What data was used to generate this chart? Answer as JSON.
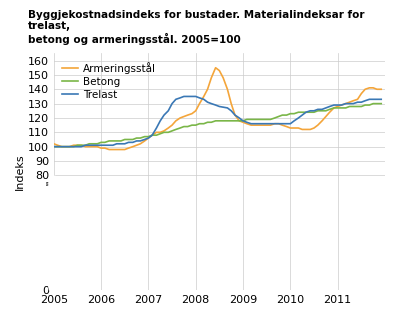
{
  "title": "Byggjekostnadsindeks for bustader. Materialindeksar for trelast,\nbetong og armeringsstål. 2005=100",
  "ylabel": "Indeks",
  "ylim": [
    0,
    165
  ],
  "yticks": [
    0,
    80,
    90,
    100,
    110,
    120,
    130,
    140,
    150,
    160
  ],
  "background_color": "#ffffff",
  "grid_color": "#cccccc",
  "series": {
    "Armeringsstål": {
      "color": "#f4a53a",
      "data": [
        [
          2005.0,
          102
        ],
        [
          2005.08,
          101
        ],
        [
          2005.17,
          100
        ],
        [
          2005.25,
          100
        ],
        [
          2005.33,
          100
        ],
        [
          2005.42,
          101
        ],
        [
          2005.5,
          101
        ],
        [
          2005.58,
          101
        ],
        [
          2005.67,
          100
        ],
        [
          2005.75,
          100
        ],
        [
          2005.83,
          100
        ],
        [
          2005.92,
          100
        ],
        [
          2006.0,
          99
        ],
        [
          2006.08,
          99
        ],
        [
          2006.17,
          98
        ],
        [
          2006.25,
          98
        ],
        [
          2006.33,
          98
        ],
        [
          2006.42,
          98
        ],
        [
          2006.5,
          98
        ],
        [
          2006.58,
          99
        ],
        [
          2006.67,
          100
        ],
        [
          2006.75,
          101
        ],
        [
          2006.83,
          102
        ],
        [
          2006.92,
          104
        ],
        [
          2007.0,
          106
        ],
        [
          2007.08,
          108
        ],
        [
          2007.17,
          110
        ],
        [
          2007.25,
          110
        ],
        [
          2007.33,
          111
        ],
        [
          2007.42,
          113
        ],
        [
          2007.5,
          115
        ],
        [
          2007.58,
          118
        ],
        [
          2007.67,
          120
        ],
        [
          2007.75,
          121
        ],
        [
          2007.83,
          122
        ],
        [
          2007.92,
          123
        ],
        [
          2008.0,
          125
        ],
        [
          2008.08,
          130
        ],
        [
          2008.17,
          135
        ],
        [
          2008.25,
          140
        ],
        [
          2008.33,
          148
        ],
        [
          2008.42,
          155
        ],
        [
          2008.5,
          153
        ],
        [
          2008.58,
          148
        ],
        [
          2008.67,
          140
        ],
        [
          2008.75,
          130
        ],
        [
          2008.83,
          122
        ],
        [
          2008.92,
          118
        ],
        [
          2009.0,
          117
        ],
        [
          2009.08,
          116
        ],
        [
          2009.17,
          115
        ],
        [
          2009.25,
          115
        ],
        [
          2009.33,
          115
        ],
        [
          2009.42,
          115
        ],
        [
          2009.5,
          115
        ],
        [
          2009.58,
          115
        ],
        [
          2009.67,
          116
        ],
        [
          2009.75,
          116
        ],
        [
          2009.83,
          115
        ],
        [
          2009.92,
          114
        ],
        [
          2010.0,
          113
        ],
        [
          2010.08,
          113
        ],
        [
          2010.17,
          113
        ],
        [
          2010.25,
          112
        ],
        [
          2010.33,
          112
        ],
        [
          2010.42,
          112
        ],
        [
          2010.5,
          113
        ],
        [
          2010.58,
          115
        ],
        [
          2010.67,
          118
        ],
        [
          2010.75,
          121
        ],
        [
          2010.83,
          124
        ],
        [
          2010.92,
          127
        ],
        [
          2011.0,
          128
        ],
        [
          2011.08,
          129
        ],
        [
          2011.17,
          130
        ],
        [
          2011.25,
          131
        ],
        [
          2011.33,
          132
        ],
        [
          2011.42,
          133
        ],
        [
          2011.5,
          137
        ],
        [
          2011.58,
          140
        ],
        [
          2011.67,
          141
        ],
        [
          2011.75,
          141
        ],
        [
          2011.83,
          140
        ],
        [
          2011.92,
          140
        ]
      ]
    },
    "Betong": {
      "color": "#7ab648",
      "data": [
        [
          2005.0,
          100
        ],
        [
          2005.08,
          100
        ],
        [
          2005.17,
          100
        ],
        [
          2005.25,
          100
        ],
        [
          2005.33,
          100
        ],
        [
          2005.42,
          100
        ],
        [
          2005.5,
          101
        ],
        [
          2005.58,
          101
        ],
        [
          2005.67,
          101
        ],
        [
          2005.75,
          102
        ],
        [
          2005.83,
          102
        ],
        [
          2005.92,
          102
        ],
        [
          2006.0,
          103
        ],
        [
          2006.08,
          103
        ],
        [
          2006.17,
          104
        ],
        [
          2006.25,
          104
        ],
        [
          2006.33,
          104
        ],
        [
          2006.42,
          104
        ],
        [
          2006.5,
          105
        ],
        [
          2006.58,
          105
        ],
        [
          2006.67,
          105
        ],
        [
          2006.75,
          106
        ],
        [
          2006.83,
          106
        ],
        [
          2006.92,
          107
        ],
        [
          2007.0,
          107
        ],
        [
          2007.08,
          108
        ],
        [
          2007.17,
          108
        ],
        [
          2007.25,
          109
        ],
        [
          2007.33,
          110
        ],
        [
          2007.42,
          110
        ],
        [
          2007.5,
          111
        ],
        [
          2007.58,
          112
        ],
        [
          2007.67,
          113
        ],
        [
          2007.75,
          114
        ],
        [
          2007.83,
          114
        ],
        [
          2007.92,
          115
        ],
        [
          2008.0,
          115
        ],
        [
          2008.08,
          116
        ],
        [
          2008.17,
          116
        ],
        [
          2008.25,
          117
        ],
        [
          2008.33,
          117
        ],
        [
          2008.42,
          118
        ],
        [
          2008.5,
          118
        ],
        [
          2008.58,
          118
        ],
        [
          2008.67,
          118
        ],
        [
          2008.75,
          118
        ],
        [
          2008.83,
          118
        ],
        [
          2008.92,
          118
        ],
        [
          2009.0,
          118
        ],
        [
          2009.08,
          119
        ],
        [
          2009.17,
          119
        ],
        [
          2009.25,
          119
        ],
        [
          2009.33,
          119
        ],
        [
          2009.42,
          119
        ],
        [
          2009.5,
          119
        ],
        [
          2009.58,
          119
        ],
        [
          2009.67,
          120
        ],
        [
          2009.75,
          121
        ],
        [
          2009.83,
          122
        ],
        [
          2009.92,
          122
        ],
        [
          2010.0,
          123
        ],
        [
          2010.08,
          123
        ],
        [
          2010.17,
          124
        ],
        [
          2010.25,
          124
        ],
        [
          2010.33,
          124
        ],
        [
          2010.42,
          124
        ],
        [
          2010.5,
          124
        ],
        [
          2010.58,
          125
        ],
        [
          2010.67,
          125
        ],
        [
          2010.75,
          125
        ],
        [
          2010.83,
          126
        ],
        [
          2010.92,
          127
        ],
        [
          2011.0,
          127
        ],
        [
          2011.08,
          127
        ],
        [
          2011.17,
          127
        ],
        [
          2011.25,
          128
        ],
        [
          2011.33,
          128
        ],
        [
          2011.42,
          128
        ],
        [
          2011.5,
          128
        ],
        [
          2011.58,
          129
        ],
        [
          2011.67,
          129
        ],
        [
          2011.75,
          130
        ],
        [
          2011.83,
          130
        ],
        [
          2011.92,
          130
        ]
      ]
    },
    "Trelast": {
      "color": "#3a78b5",
      "data": [
        [
          2005.0,
          100
        ],
        [
          2005.08,
          100
        ],
        [
          2005.17,
          100
        ],
        [
          2005.25,
          100
        ],
        [
          2005.33,
          100
        ],
        [
          2005.42,
          100
        ],
        [
          2005.5,
          100
        ],
        [
          2005.58,
          100
        ],
        [
          2005.67,
          101
        ],
        [
          2005.75,
          101
        ],
        [
          2005.83,
          101
        ],
        [
          2005.92,
          101
        ],
        [
          2006.0,
          101
        ],
        [
          2006.08,
          101
        ],
        [
          2006.17,
          101
        ],
        [
          2006.25,
          101
        ],
        [
          2006.33,
          102
        ],
        [
          2006.42,
          102
        ],
        [
          2006.5,
          102
        ],
        [
          2006.58,
          103
        ],
        [
          2006.67,
          103
        ],
        [
          2006.75,
          104
        ],
        [
          2006.83,
          104
        ],
        [
          2006.92,
          105
        ],
        [
          2007.0,
          106
        ],
        [
          2007.08,
          108
        ],
        [
          2007.17,
          113
        ],
        [
          2007.25,
          118
        ],
        [
          2007.33,
          122
        ],
        [
          2007.42,
          125
        ],
        [
          2007.5,
          130
        ],
        [
          2007.58,
          133
        ],
        [
          2007.67,
          134
        ],
        [
          2007.75,
          135
        ],
        [
          2007.83,
          135
        ],
        [
          2007.92,
          135
        ],
        [
          2008.0,
          135
        ],
        [
          2008.08,
          134
        ],
        [
          2008.17,
          133
        ],
        [
          2008.25,
          131
        ],
        [
          2008.33,
          130
        ],
        [
          2008.42,
          129
        ],
        [
          2008.5,
          128
        ],
        [
          2008.67,
          127
        ],
        [
          2008.75,
          125
        ],
        [
          2008.83,
          122
        ],
        [
          2008.92,
          120
        ],
        [
          2009.0,
          118
        ],
        [
          2009.08,
          117
        ],
        [
          2009.17,
          116
        ],
        [
          2009.25,
          116
        ],
        [
          2009.33,
          116
        ],
        [
          2009.42,
          116
        ],
        [
          2009.5,
          116
        ],
        [
          2009.58,
          116
        ],
        [
          2009.67,
          116
        ],
        [
          2009.75,
          116
        ],
        [
          2009.83,
          116
        ],
        [
          2009.92,
          116
        ],
        [
          2010.0,
          116
        ],
        [
          2010.08,
          118
        ],
        [
          2010.17,
          120
        ],
        [
          2010.25,
          122
        ],
        [
          2010.33,
          124
        ],
        [
          2010.42,
          125
        ],
        [
          2010.5,
          125
        ],
        [
          2010.58,
          126
        ],
        [
          2010.67,
          126
        ],
        [
          2010.75,
          127
        ],
        [
          2010.83,
          128
        ],
        [
          2010.92,
          129
        ],
        [
          2011.0,
          129
        ],
        [
          2011.08,
          129
        ],
        [
          2011.17,
          130
        ],
        [
          2011.25,
          130
        ],
        [
          2011.33,
          130
        ],
        [
          2011.42,
          131
        ],
        [
          2011.5,
          131
        ],
        [
          2011.58,
          132
        ],
        [
          2011.67,
          133
        ],
        [
          2011.75,
          133
        ],
        [
          2011.83,
          133
        ],
        [
          2011.92,
          133
        ]
      ]
    }
  },
  "legend_order": [
    "Armeringsstål",
    "Betong",
    "Trelast"
  ],
  "xticks": [
    2005,
    2006,
    2007,
    2008,
    2009,
    2010,
    2011
  ],
  "xlim": [
    2005.0,
    2012.0
  ]
}
